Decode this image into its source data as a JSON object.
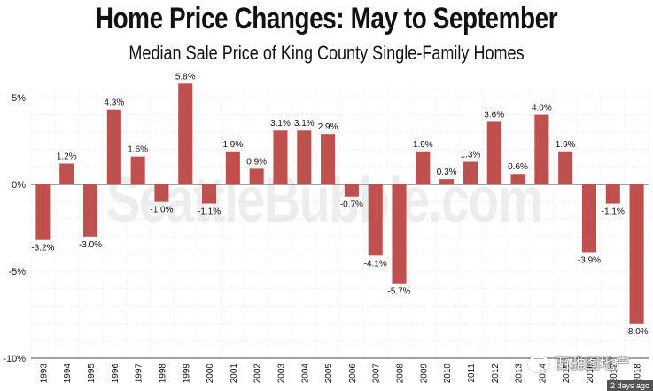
{
  "chart_data": {
    "type": "bar",
    "title": "Home Price Changes: May to September",
    "subtitle": "Median Sale Price of King County Single-Family Homes",
    "xlabel": "",
    "ylabel": "",
    "ylim": [
      -10,
      6
    ],
    "yticks": [
      5,
      0,
      -5,
      -10
    ],
    "ytick_labels": [
      "5%",
      "0%",
      "-5%",
      "-10%"
    ],
    "grid": true,
    "bar_color": "#c0504d",
    "categories": [
      "1993",
      "1994",
      "1995",
      "1996",
      "1997",
      "1998",
      "1999",
      "2000",
      "2001",
      "2002",
      "2003",
      "2004",
      "2005",
      "2006",
      "2007",
      "2008",
      "2009",
      "2010",
      "2011",
      "2012",
      "2013",
      "2014",
      "2015",
      "2016",
      "2017",
      "2018"
    ],
    "values": [
      -3.2,
      1.2,
      -3.0,
      4.3,
      1.6,
      -1.0,
      5.8,
      -1.1,
      1.9,
      0.9,
      3.1,
      3.1,
      2.9,
      -0.7,
      -4.1,
      -5.7,
      1.9,
      0.3,
      1.3,
      3.6,
      0.6,
      4.0,
      1.9,
      -3.9,
      -1.1,
      -8.0
    ],
    "data_labels": [
      "-3.2%",
      "1.2%",
      "-3.0%",
      "4.3%",
      "1.6%",
      "-1.0%",
      "5.8%",
      "-1.1%",
      "1.9%",
      "0.9%",
      "3.1%",
      "3.1%",
      "2.9%",
      "-0.7%",
      "-4.1%",
      "-5.7%",
      "1.9%",
      "0.3%",
      "1.3%",
      "3.6%",
      "0.6%",
      "4.0%",
      "1.9%",
      "-3.9%",
      "-1.1%",
      "-8.0%"
    ]
  },
  "watermark": "SeattleBubble.com",
  "overlay": {
    "brand_text": "西雅图地产",
    "brand_icon": "wechat-icon",
    "timestamp": "2 days ago"
  }
}
